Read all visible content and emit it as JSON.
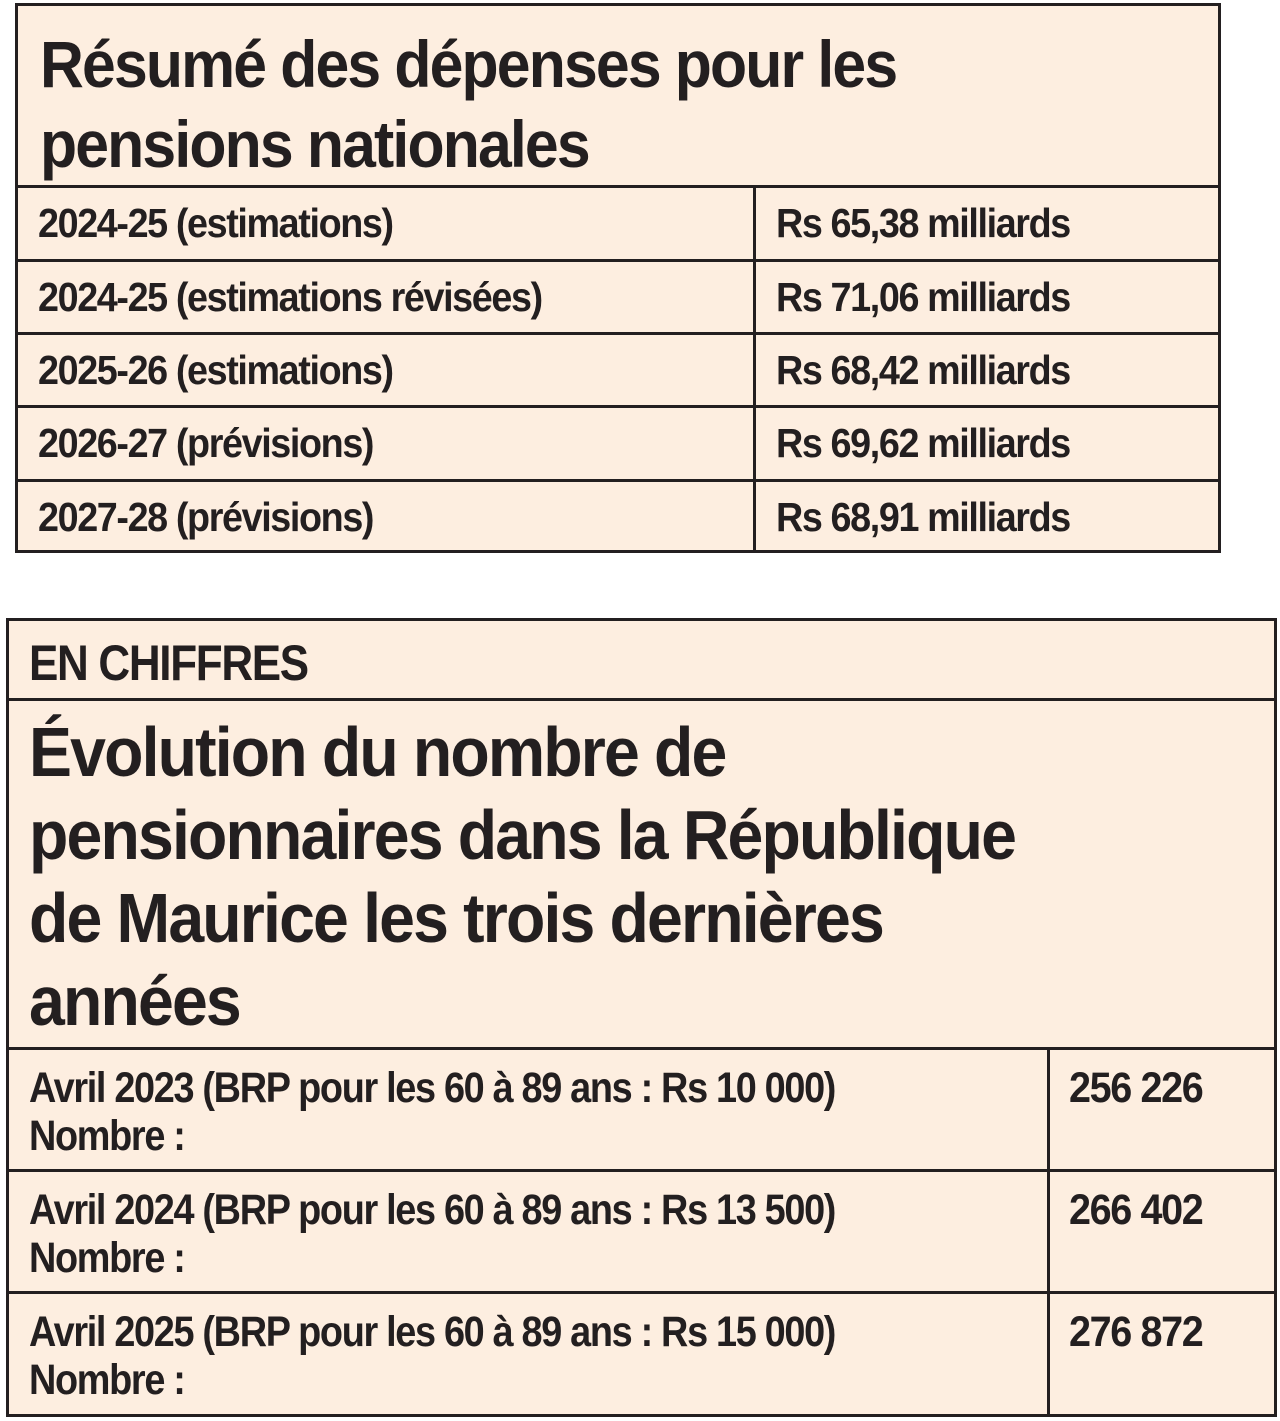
{
  "table1": {
    "title_line1": "Résumé des dépenses pour les",
    "title_line2": "pensions nationales",
    "rows": [
      {
        "period": "2024-25 (estimations)",
        "amount": "Rs 65,38 milliards"
      },
      {
        "period": "2024-25 (estimations révisées)",
        "amount": "Rs 71,06 milliards"
      },
      {
        "period": "2025-26 (estimations)",
        "amount": "Rs 68,42 milliards"
      },
      {
        "period": "2026-27 (prévisions)",
        "amount": "Rs 69,62 milliards"
      },
      {
        "period": "2027-28 (prévisions)",
        "amount": "Rs 68,91 milliards"
      }
    ]
  },
  "table2": {
    "kicker": "EN CHIFFRES",
    "title_lines": [
      "Évolution du nombre de",
      "pensionnaires dans la République",
      "de Maurice les trois dernières",
      "années"
    ],
    "rows": [
      {
        "label": "Avril 2023 (BRP pour les 60 à 89 ans : Rs 10 000)",
        "sub": "Nombre :",
        "value": "256 226"
      },
      {
        "label": "Avril 2024 (BRP pour les 60 à 89 ans : Rs 13 500)",
        "sub": "Nombre :",
        "value": "266 402"
      },
      {
        "label": "Avril 2025 (BRP pour les 60 à 89 ans : Rs 15 000)",
        "sub": "Nombre :",
        "value": "276 872"
      }
    ]
  },
  "colors": {
    "background": "#fdeee0",
    "border": "#231f20",
    "text": "#231f20"
  }
}
